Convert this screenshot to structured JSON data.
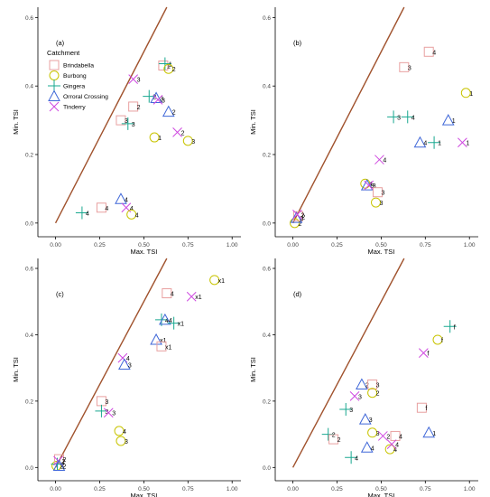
{
  "colors": {
    "Brindabella": "#e8a0a0",
    "Burbong": "#c8c400",
    "Gingera": "#19a890",
    "Orroral Crossing": "#3f67d8",
    "Tinderry": "#cf49e0",
    "line": "#a0522d",
    "axis": "#000000",
    "label": "#444444"
  },
  "legend": {
    "title": "Catchment",
    "entries": [
      {
        "name": "Brindabella",
        "symbol": "square"
      },
      {
        "name": "Burbong",
        "symbol": "circle"
      },
      {
        "name": "Gingera",
        "symbol": "plus"
      },
      {
        "name": "Orroral Crossing",
        "symbol": "triangle"
      },
      {
        "name": "Tinderry",
        "symbol": "cross"
      }
    ]
  },
  "chart_data": [
    {
      "type": "scatter",
      "panel_label": "(a)",
      "xlabel": "Max. TSI",
      "ylabel": "Min. TSI",
      "xlim": [
        -0.1,
        1.05
      ],
      "ylim": [
        -0.04,
        0.63
      ],
      "x_ticks": [
        "0.00",
        "0.25",
        "0.50",
        "0.75",
        "1.00"
      ],
      "y_ticks": [
        "0.0",
        "0.2",
        "0.4",
        "0.6"
      ],
      "reference_line": "1:1",
      "show_legend": true,
      "points": [
        {
          "series": "Gingera",
          "x": 0.15,
          "y": 0.03,
          "label": "4"
        },
        {
          "series": "Brindabella",
          "x": 0.26,
          "y": 0.045,
          "label": "4"
        },
        {
          "series": "Orroral Crossing",
          "x": 0.37,
          "y": 0.07,
          "label": "4"
        },
        {
          "series": "Tinderry",
          "x": 0.4,
          "y": 0.045,
          "label": "4"
        },
        {
          "series": "Burbong",
          "x": 0.43,
          "y": 0.025,
          "label": "4"
        },
        {
          "series": "Brindabella",
          "x": 0.37,
          "y": 0.3,
          "label": "3"
        },
        {
          "series": "Gingera",
          "x": 0.41,
          "y": 0.29,
          "label": "3"
        },
        {
          "series": "Brindabella",
          "x": 0.44,
          "y": 0.34,
          "label": "2"
        },
        {
          "series": "Tinderry",
          "x": 0.44,
          "y": 0.42,
          "label": "3"
        },
        {
          "series": "Gingera",
          "x": 0.53,
          "y": 0.37,
          "label": "2"
        },
        {
          "series": "Orroral Crossing",
          "x": 0.57,
          "y": 0.365,
          "label": "3"
        },
        {
          "series": "Tinderry",
          "x": 0.58,
          "y": 0.36,
          "label": "3"
        },
        {
          "series": "Burbong",
          "x": 0.56,
          "y": 0.25,
          "label": "1"
        },
        {
          "series": "Brindabella",
          "x": 0.61,
          "y": 0.46,
          "label": "1"
        },
        {
          "series": "Gingera",
          "x": 0.62,
          "y": 0.465,
          "label": "1"
        },
        {
          "series": "Burbong",
          "x": 0.64,
          "y": 0.45,
          "label": "2"
        },
        {
          "series": "Orroral Crossing",
          "x": 0.64,
          "y": 0.325,
          "label": "2"
        },
        {
          "series": "Tinderry",
          "x": 0.69,
          "y": 0.265,
          "label": "2"
        },
        {
          "series": "Burbong",
          "x": 0.75,
          "y": 0.24,
          "label": "3"
        }
      ]
    },
    {
      "type": "scatter",
      "panel_label": "(b)",
      "xlabel": "Max. TSI",
      "ylabel": "Min. TSI",
      "xlim": [
        -0.1,
        1.05
      ],
      "ylim": [
        -0.04,
        0.63
      ],
      "x_ticks": [
        "0.00",
        "0.25",
        "0.50",
        "0.75",
        "1.00"
      ],
      "y_ticks": [
        "0.0",
        "0.2",
        "0.4",
        "0.6"
      ],
      "reference_line": "1:1",
      "show_legend": false,
      "points": [
        {
          "series": "Burbong",
          "x": 0.01,
          "y": 0.0,
          "label": "2"
        },
        {
          "series": "Brindabella",
          "x": 0.03,
          "y": 0.02,
          "label": "2"
        },
        {
          "series": "Orroral Crossing",
          "x": 0.02,
          "y": 0.015,
          "label": "2"
        },
        {
          "series": "Tinderry",
          "x": 0.025,
          "y": 0.025,
          "label": "2"
        },
        {
          "series": "Burbong",
          "x": 0.41,
          "y": 0.115,
          "label": "4"
        },
        {
          "series": "Orroral Crossing",
          "x": 0.42,
          "y": 0.11,
          "label": "3"
        },
        {
          "series": "Tinderry",
          "x": 0.43,
          "y": 0.11,
          "label": "3"
        },
        {
          "series": "Brindabella",
          "x": 0.48,
          "y": 0.09,
          "label": "3"
        },
        {
          "series": "Burbong",
          "x": 0.47,
          "y": 0.06,
          "label": "3"
        },
        {
          "series": "Tinderry",
          "x": 0.49,
          "y": 0.185,
          "label": "4"
        },
        {
          "series": "Brindabella",
          "x": 0.63,
          "y": 0.455,
          "label": "3"
        },
        {
          "series": "Gingera",
          "x": 0.57,
          "y": 0.31,
          "label": "3"
        },
        {
          "series": "Gingera",
          "x": 0.65,
          "y": 0.31,
          "label": "4"
        },
        {
          "series": "Brindabella",
          "x": 0.77,
          "y": 0.5,
          "label": "4"
        },
        {
          "series": "Orroral Crossing",
          "x": 0.72,
          "y": 0.235,
          "label": "4"
        },
        {
          "series": "Gingera",
          "x": 0.8,
          "y": 0.235,
          "label": "1"
        },
        {
          "series": "Orroral Crossing",
          "x": 0.88,
          "y": 0.3,
          "label": "1"
        },
        {
          "series": "Tinderry",
          "x": 0.96,
          "y": 0.235,
          "label": "1"
        },
        {
          "series": "Burbong",
          "x": 0.98,
          "y": 0.38,
          "label": "1"
        }
      ]
    },
    {
      "type": "scatter",
      "panel_label": "(c)",
      "xlabel": "Max. TSI",
      "ylabel": "Min. TSI",
      "xlim": [
        -0.1,
        1.05
      ],
      "ylim": [
        -0.04,
        0.63
      ],
      "x_ticks": [
        "0.00",
        "0.25",
        "0.50",
        "0.75",
        "1.00"
      ],
      "y_ticks": [
        "0.0",
        "0.2",
        "0.4",
        "0.6"
      ],
      "reference_line": "1:1",
      "show_legend": false,
      "points": [
        {
          "series": "Burbong",
          "x": 0.005,
          "y": 0.005,
          "label": "2"
        },
        {
          "series": "Brindabella",
          "x": 0.02,
          "y": 0.025,
          "label": "2"
        },
        {
          "series": "Gingera",
          "x": 0.01,
          "y": 0.01,
          "label": "2"
        },
        {
          "series": "Tinderry",
          "x": 0.015,
          "y": 0.02,
          "label": "2"
        },
        {
          "series": "Orroral Crossing",
          "x": 0.02,
          "y": 0.005,
          "label": "2"
        },
        {
          "series": "Brindabella",
          "x": 0.26,
          "y": 0.2,
          "label": "3"
        },
        {
          "series": "Gingera",
          "x": 0.26,
          "y": 0.17,
          "label": "3"
        },
        {
          "series": "Tinderry",
          "x": 0.3,
          "y": 0.165,
          "label": "3"
        },
        {
          "series": "Burbong",
          "x": 0.36,
          "y": 0.11,
          "label": "4"
        },
        {
          "series": "Burbong",
          "x": 0.37,
          "y": 0.08,
          "label": "3"
        },
        {
          "series": "Tinderry",
          "x": 0.38,
          "y": 0.33,
          "label": "4"
        },
        {
          "series": "Orroral Crossing",
          "x": 0.39,
          "y": 0.31,
          "label": "3"
        },
        {
          "series": "Orroral Crossing",
          "x": 0.57,
          "y": 0.385,
          "label": "x1"
        },
        {
          "series": "Brindabella",
          "x": 0.6,
          "y": 0.365,
          "label": "x1"
        },
        {
          "series": "Gingera",
          "x": 0.6,
          "y": 0.445,
          "label": "4"
        },
        {
          "series": "Orroral Crossing",
          "x": 0.62,
          "y": 0.445,
          "label": "4"
        },
        {
          "series": "Gingera",
          "x": 0.67,
          "y": 0.435,
          "label": "x1"
        },
        {
          "series": "Brindabella",
          "x": 0.63,
          "y": 0.525,
          "label": "4"
        },
        {
          "series": "Tinderry",
          "x": 0.77,
          "y": 0.515,
          "label": "x1"
        },
        {
          "series": "Burbong",
          "x": 0.9,
          "y": 0.565,
          "label": "x1"
        }
      ]
    },
    {
      "type": "scatter",
      "panel_label": "(d)",
      "xlabel": "Max. TSI",
      "ylabel": "Min. TSI",
      "xlim": [
        -0.1,
        1.05
      ],
      "ylim": [
        -0.04,
        0.63
      ],
      "x_ticks": [
        "0.00",
        "0.25",
        "0.50",
        "0.75",
        "1.00"
      ],
      "y_ticks": [
        "0.0",
        "0.2",
        "0.4",
        "0.6"
      ],
      "reference_line": "1:1",
      "show_legend": false,
      "points": [
        {
          "series": "Gingera",
          "x": 0.2,
          "y": 0.1,
          "label": "2"
        },
        {
          "series": "Brindabella",
          "x": 0.23,
          "y": 0.085,
          "label": "2"
        },
        {
          "series": "Gingera",
          "x": 0.3,
          "y": 0.175,
          "label": "3"
        },
        {
          "series": "Tinderry",
          "x": 0.35,
          "y": 0.215,
          "label": "3"
        },
        {
          "series": "Orroral Crossing",
          "x": 0.39,
          "y": 0.25,
          "label": "2"
        },
        {
          "series": "Brindabella",
          "x": 0.45,
          "y": 0.25,
          "label": "3"
        },
        {
          "series": "Burbong",
          "x": 0.45,
          "y": 0.225,
          "label": "2"
        },
        {
          "series": "Orroral Crossing",
          "x": 0.41,
          "y": 0.145,
          "label": "3"
        },
        {
          "series": "Burbong",
          "x": 0.45,
          "y": 0.105,
          "label": "3"
        },
        {
          "series": "Gingera",
          "x": 0.33,
          "y": 0.03,
          "label": "4"
        },
        {
          "series": "Orroral Crossing",
          "x": 0.42,
          "y": 0.06,
          "label": "4"
        },
        {
          "series": "Tinderry",
          "x": 0.51,
          "y": 0.095,
          "label": "2"
        },
        {
          "series": "Brindabella",
          "x": 0.58,
          "y": 0.095,
          "label": "4"
        },
        {
          "series": "Burbong",
          "x": 0.55,
          "y": 0.055,
          "label": "4"
        },
        {
          "series": "Tinderry",
          "x": 0.56,
          "y": 0.07,
          "label": "4"
        },
        {
          "series": "Brindabella",
          "x": 0.73,
          "y": 0.18,
          "label": "f"
        },
        {
          "series": "Orroral Crossing",
          "x": 0.77,
          "y": 0.105,
          "label": "1"
        },
        {
          "series": "Tinderry",
          "x": 0.74,
          "y": 0.345,
          "label": "f"
        },
        {
          "series": "Burbong",
          "x": 0.82,
          "y": 0.385,
          "label": "f"
        },
        {
          "series": "Gingera",
          "x": 0.89,
          "y": 0.425,
          "label": "f"
        }
      ]
    }
  ]
}
